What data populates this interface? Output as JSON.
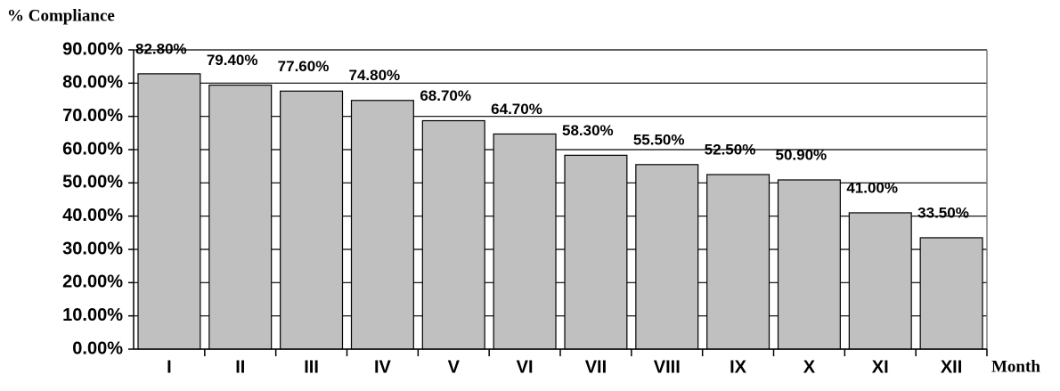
{
  "chart_data": {
    "type": "bar",
    "title": "% Compliance",
    "x_label": "Month",
    "categories": [
      "I",
      "II",
      "III",
      "IV",
      "V",
      "VI",
      "VII",
      "VIII",
      "IX",
      "X",
      "XI",
      "XII"
    ],
    "values": [
      82.8,
      79.4,
      77.6,
      74.8,
      68.7,
      64.7,
      58.3,
      55.5,
      52.5,
      50.9,
      41.0,
      33.5
    ],
    "value_labels": [
      "82.80%",
      "79.40%",
      "77.60%",
      "74.80%",
      "68.70%",
      "64.70%",
      "58.30%",
      "55.50%",
      "52.50%",
      "50.90%",
      "41.00%",
      "33.50%"
    ],
    "color": "#c0c0c0",
    "ylim": [
      0,
      90
    ],
    "yticks": [
      {
        "value": 0,
        "label": "0.00%"
      },
      {
        "value": 10,
        "label": "10.00%"
      },
      {
        "value": 20,
        "label": "20.00%"
      },
      {
        "value": 30,
        "label": "30.00%"
      },
      {
        "value": 40,
        "label": "40.00%"
      },
      {
        "value": 50,
        "label": "50.00%"
      },
      {
        "value": 60,
        "label": "60.00%"
      },
      {
        "value": 70,
        "label": "70.00%"
      },
      {
        "value": 80,
        "label": "80.00%"
      },
      {
        "value": 90,
        "label": "90.00%"
      }
    ],
    "grid": true
  }
}
